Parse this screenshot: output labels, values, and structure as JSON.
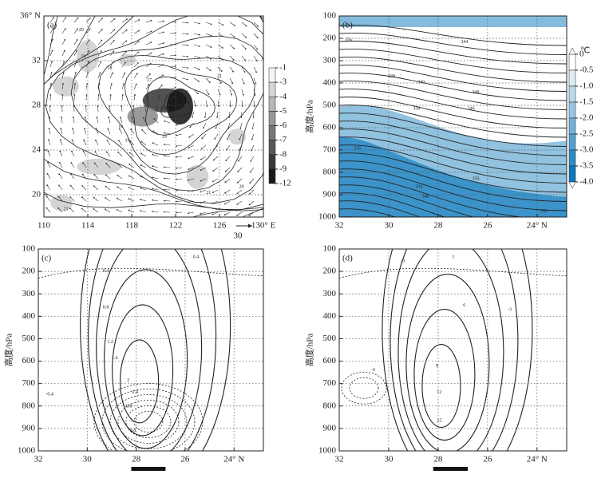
{
  "chart_data": [
    {
      "type": "map",
      "panel_label": "(a)",
      "grid": true,
      "xlim": [
        110,
        130
      ],
      "xticks": [
        110,
        114,
        118,
        122,
        126,
        {
          "value": 130,
          "label": "130° E"
        }
      ],
      "ylim": [
        18,
        36
      ],
      "yticks": [
        20,
        24,
        28,
        32,
        {
          "value": 36,
          "label": "36° N"
        }
      ],
      "vector_key_label": "30",
      "colorbar": {
        "ticks": [
          -1,
          -3,
          -4,
          -5,
          -6,
          -7,
          -8,
          -9,
          -12
        ],
        "colors": [
          "#f4f4f4",
          "#1a1a1a"
        ]
      },
      "contour_labels": [
        "20",
        "19",
        "18",
        "17",
        "16",
        "16",
        "19",
        "20",
        "21",
        "20",
        "21",
        "23"
      ]
    },
    {
      "type": "cross-section",
      "panel_label": "(b)",
      "grid": true,
      "y_label": "高度/hPa",
      "xlim": [
        32,
        22.8
      ],
      "xticks": [
        32,
        30,
        28,
        26,
        {
          "value": 24,
          "label": "24° N"
        }
      ],
      "ylim": [
        1000,
        100
      ],
      "yticks": [
        100,
        200,
        300,
        400,
        500,
        600,
        700,
        800,
        900,
        1000
      ],
      "colorbar": {
        "unit": "℃",
        "colors": [
          "#ffffff",
          "#0a78bb"
        ],
        "ticks": [
          0,
          -0.5,
          {
            "value": -1,
            "label": "-1.0"
          },
          -1.5,
          {
            "value": -2,
            "label": "-2.0"
          },
          -2.5,
          {
            "value": -3,
            "label": "-3.0"
          },
          -3.5,
          {
            "value": -4,
            "label": "-4.0"
          }
        ]
      },
      "contour_labels": [
        "356",
        "344",
        "338",
        "340",
        "330",
        "346",
        "348",
        "336",
        "350",
        "340",
        "334",
        "352"
      ]
    },
    {
      "type": "cross-section",
      "panel_label": "(c)",
      "grid": true,
      "y_label": "高度/hPa",
      "xlim": [
        32,
        22.8
      ],
      "xticks": [
        32,
        30,
        28,
        26,
        {
          "value": 24,
          "label": "24° N"
        }
      ],
      "ylim": [
        1000,
        100
      ],
      "yticks": [
        100,
        200,
        300,
        400,
        500,
        600,
        700,
        800,
        900,
        1000
      ],
      "contour_labels": [
        "0.4",
        "0.4",
        "0.8",
        "1.2",
        "1.6",
        "2",
        "2.4",
        "-0.4",
        "-0.8",
        "-1.2",
        "0.8"
      ]
    },
    {
      "type": "cross-section",
      "panel_label": "(d)",
      "grid": true,
      "y_label": "高度/hPa",
      "xlim": [
        32,
        22.8
      ],
      "xticks": [
        32,
        30,
        28,
        26,
        {
          "value": 24,
          "label": "24° N"
        }
      ],
      "ylim": [
        1000,
        100
      ],
      "yticks": [
        100,
        200,
        300,
        400,
        500,
        600,
        700,
        800,
        900,
        1000
      ],
      "contour_labels": [
        "3",
        "6",
        "9",
        "12",
        "15",
        "-3",
        "-3",
        "-6"
      ]
    }
  ]
}
